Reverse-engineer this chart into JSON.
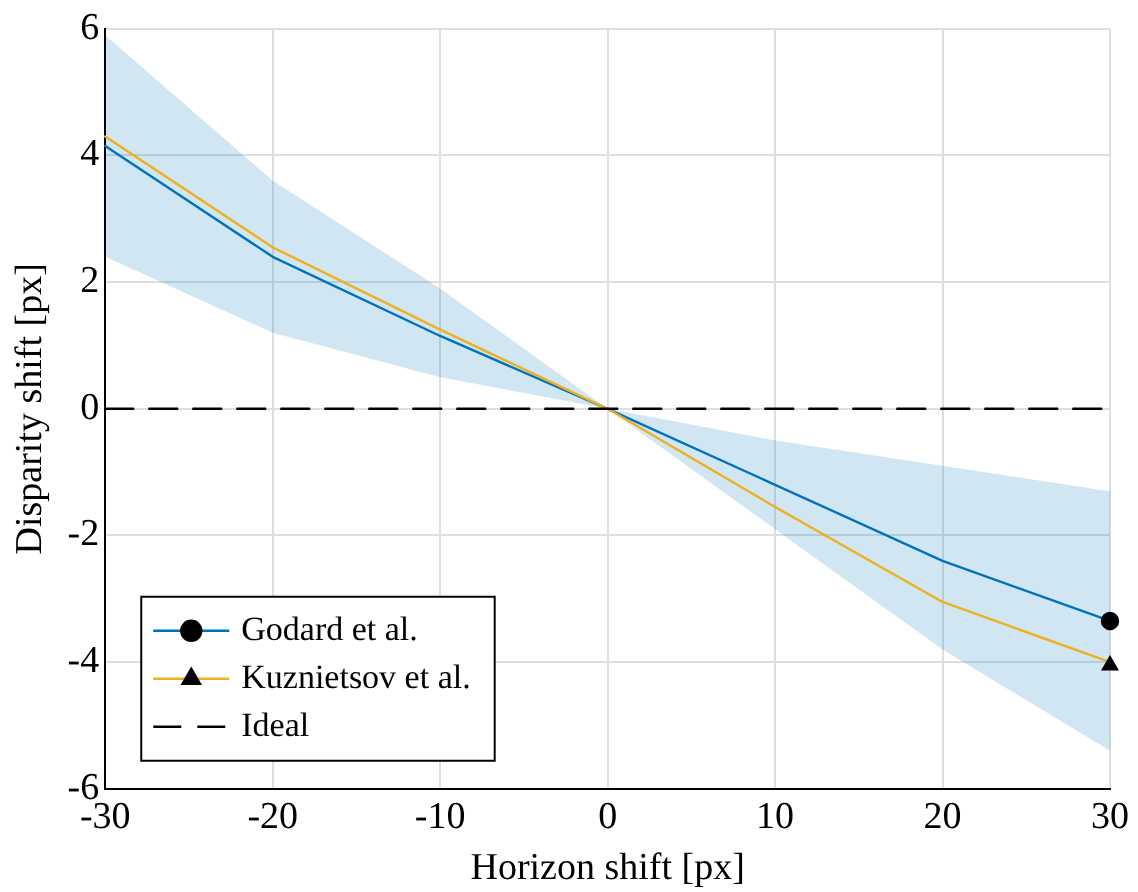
{
  "chart_data": {
    "type": "line",
    "xlabel": "Horizon shift [px]",
    "ylabel": "Disparity shift [px]",
    "x": [
      -30,
      -20,
      -10,
      0,
      10,
      20,
      30
    ],
    "series": [
      {
        "name": "Godard et al.",
        "color": "#0072bd",
        "values": [
          4.15,
          2.4,
          1.15,
          0,
          -1.2,
          -2.4,
          -3.35
        ],
        "lower": [
          2.4,
          1.2,
          0.5,
          0,
          -1.9,
          -3.8,
          -5.4
        ],
        "upper": [
          5.9,
          3.6,
          1.9,
          0,
          -0.5,
          -0.9,
          -1.3
        ]
      },
      {
        "type": "scatter",
        "color": "#000000",
        "marker": "circle",
        "x": [
          30
        ],
        "values": [
          -3.35
        ]
      },
      {
        "name": "Kuznietsov et al.",
        "color": "#edb120",
        "values": [
          4.3,
          2.55,
          1.25,
          0,
          -1.55,
          -3.05,
          -4.0
        ]
      },
      {
        "type": "scatter",
        "color": "#000000",
        "marker": "triangle",
        "x": [
          30
        ],
        "values": [
          -4.05
        ]
      },
      {
        "name": "Ideal",
        "color": "#000000",
        "line_style": "dashed",
        "values": [
          0,
          0,
          0,
          0,
          0,
          0,
          0
        ]
      }
    ],
    "xlim": [
      -30,
      30
    ],
    "xticks": [
      -30,
      -20,
      -10,
      0,
      10,
      20,
      30
    ],
    "ylim": [
      -6,
      6
    ],
    "yticks": [
      -6,
      -4,
      -2,
      0,
      2,
      4,
      6
    ],
    "grid": true,
    "legend": "bottom left",
    "marker": "none"
  }
}
